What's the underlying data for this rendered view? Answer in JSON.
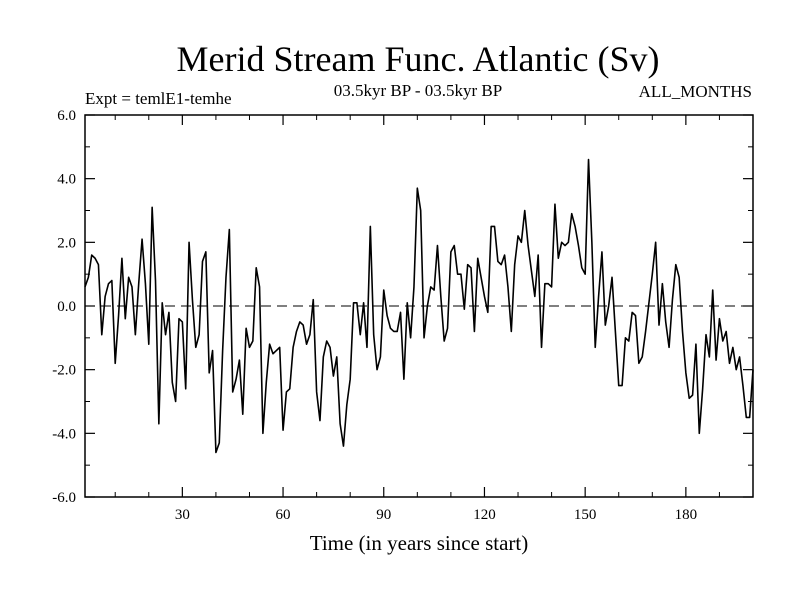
{
  "chart_data": {
    "type": "line",
    "title": "Merid Stream Func. Atlantic (Sv)",
    "subtitle_left": "Expt = temlE1-temhe",
    "subtitle_center": "03.5kyr BP - 03.5kyr BP",
    "subtitle_right": "ALL_MONTHS",
    "xlabel": "Time (in years since start)",
    "ylabel": "",
    "xlim": [
      1,
      200
    ],
    "ylim": [
      -6,
      6
    ],
    "xticks": [
      30,
      60,
      90,
      120,
      150,
      180
    ],
    "xtick_labels": [
      "30",
      "60",
      "90",
      "120",
      "150",
      "180"
    ],
    "yticks": [
      6,
      4,
      2,
      0,
      -2,
      -4,
      -6
    ],
    "ytick_labels": [
      "6.0",
      "4.0",
      "2.0",
      "0.0",
      "-2.0",
      "-4.0",
      "-6.0"
    ],
    "zero_line": true,
    "series": [
      {
        "name": "Merid Stream Func. Atlantic",
        "x_start": 1,
        "x_step": 1,
        "values": [
          0.6,
          0.9,
          1.6,
          1.5,
          1.3,
          -0.9,
          0.3,
          0.7,
          0.8,
          -1.8,
          -0.3,
          1.5,
          -0.4,
          0.9,
          0.6,
          -0.9,
          0.7,
          2.1,
          0.7,
          -1.2,
          3.1,
          0.8,
          -3.7,
          0.1,
          -0.9,
          -0.2,
          -2.4,
          -3.0,
          -0.4,
          -0.5,
          -2.6,
          2.0,
          0.2,
          -1.3,
          -0.9,
          1.4,
          1.7,
          -2.1,
          -1.4,
          -4.6,
          -4.3,
          -1.4,
          0.9,
          2.4,
          -2.7,
          -2.3,
          -1.7,
          -3.4,
          -0.7,
          -1.3,
          -1.1,
          1.2,
          0.6,
          -4.0,
          -2.4,
          -1.2,
          -1.5,
          -1.4,
          -1.3,
          -3.9,
          -2.7,
          -2.6,
          -1.3,
          -0.8,
          -0.5,
          -0.6,
          -1.2,
          -0.9,
          0.2,
          -2.7,
          -3.6,
          -1.6,
          -1.1,
          -1.3,
          -2.2,
          -1.6,
          -3.7,
          -4.4,
          -3.1,
          -2.3,
          0.1,
          0.1,
          -0.9,
          0.1,
          -1.3,
          2.5,
          -0.9,
          -2.0,
          -1.6,
          0.5,
          -0.3,
          -0.7,
          -0.8,
          -0.8,
          -0.2,
          -2.3,
          0.1,
          -1.0,
          0.6,
          3.7,
          3.0,
          -1.0,
          0.0,
          0.6,
          0.5,
          1.9,
          0.3,
          -1.1,
          -0.7,
          1.7,
          1.9,
          1.0,
          1.0,
          -0.1,
          1.3,
          1.2,
          -0.8,
          1.5,
          0.9,
          0.3,
          -0.2,
          2.5,
          2.5,
          1.4,
          1.3,
          1.6,
          0.6,
          -0.8,
          1.3,
          2.2,
          2.0,
          3.0,
          1.9,
          1.1,
          0.3,
          1.6,
          -1.3,
          0.7,
          0.7,
          0.6,
          3.2,
          1.5,
          2.0,
          1.9,
          2.0,
          2.9,
          2.5,
          1.9,
          1.2,
          1.0,
          4.6,
          2.0,
          -1.3,
          0.3,
          1.7,
          -0.6,
          0.0,
          0.9,
          -0.8,
          -2.5,
          -2.5,
          -1.0,
          -1.1,
          -0.2,
          -0.3,
          -1.8,
          -1.6,
          -0.8,
          0.1,
          1.0,
          2.0,
          -0.6,
          0.7,
          -0.5,
          -1.3,
          0.2,
          1.3,
          0.9,
          -0.8,
          -2.1,
          -2.9,
          -2.8,
          -1.2,
          -4.0,
          -2.6,
          -0.9,
          -1.6,
          0.5,
          -1.7,
          -0.4,
          -1.1,
          -0.8,
          -1.8,
          -1.3,
          -2.0,
          -1.6,
          -2.5,
          -3.5,
          -3.5,
          -2.0
        ]
      }
    ]
  }
}
